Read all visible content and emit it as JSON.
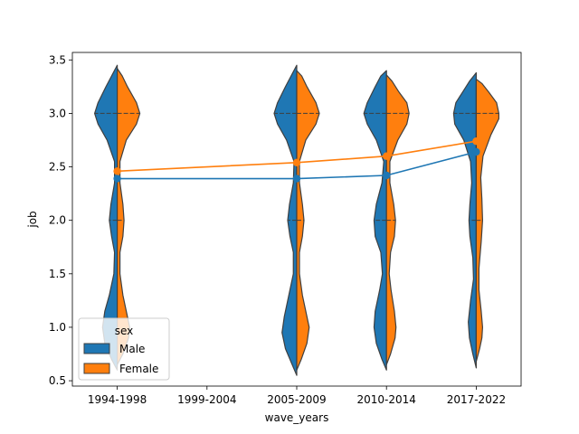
{
  "chart_data": {
    "type": "violin",
    "xlabel": "wave_years",
    "ylabel": "job",
    "categories": [
      "1994-1998",
      "1999-2004",
      "2005-2009",
      "2010-2014",
      "2017-2022"
    ],
    "yticks": [
      "0.5",
      "1.0",
      "1.5",
      "2.0",
      "2.5",
      "3.0",
      "3.5"
    ],
    "ylim": [
      0.45,
      3.57
    ],
    "legend": {
      "title": "sex",
      "placement": "lower-left",
      "entries": [
        "Male",
        "Female"
      ]
    },
    "colors": {
      "Male": "#1f77b4",
      "Female": "#ff7f0e",
      "edge": "#3f3f3f"
    },
    "series": [
      {
        "name": "Male",
        "means": [
          2.39,
          null,
          2.39,
          2.42,
          2.64
        ],
        "violins": [
          {
            "category": "1994-1998",
            "profile": [
              [
                0.6,
                0.0
              ],
              [
                0.7,
                0.25
              ],
              [
                0.85,
                0.55
              ],
              [
                1.0,
                0.65
              ],
              [
                1.15,
                0.55
              ],
              [
                1.3,
                0.35
              ],
              [
                1.5,
                0.15
              ],
              [
                1.7,
                0.12
              ],
              [
                1.85,
                0.25
              ],
              [
                2.0,
                0.35
              ],
              [
                2.15,
                0.28
              ],
              [
                2.35,
                0.12
              ],
              [
                2.55,
                0.12
              ],
              [
                2.75,
                0.45
              ],
              [
                2.9,
                0.85
              ],
              [
                3.0,
                1.0
              ],
              [
                3.1,
                0.85
              ],
              [
                3.25,
                0.5
              ],
              [
                3.35,
                0.25
              ],
              [
                3.45,
                0.0
              ]
            ],
            "quartiles": [
              2.0,
              3.0
            ]
          },
          {
            "category": "2005-2009",
            "profile": [
              [
                0.55,
                0.0
              ],
              [
                0.65,
                0.2
              ],
              [
                0.8,
                0.5
              ],
              [
                0.95,
                0.65
              ],
              [
                1.1,
                0.55
              ],
              [
                1.3,
                0.35
              ],
              [
                1.5,
                0.15
              ],
              [
                1.7,
                0.15
              ],
              [
                1.85,
                0.3
              ],
              [
                2.0,
                0.4
              ],
              [
                2.15,
                0.32
              ],
              [
                2.35,
                0.15
              ],
              [
                2.55,
                0.12
              ],
              [
                2.75,
                0.45
              ],
              [
                2.9,
                0.85
              ],
              [
                3.0,
                1.0
              ],
              [
                3.1,
                0.85
              ],
              [
                3.25,
                0.5
              ],
              [
                3.35,
                0.25
              ],
              [
                3.45,
                0.0
              ]
            ],
            "quartiles": [
              2.0,
              3.0
            ]
          },
          {
            "category": "2010-2014",
            "profile": [
              [
                0.6,
                0.0
              ],
              [
                0.7,
                0.2
              ],
              [
                0.85,
                0.45
              ],
              [
                1.0,
                0.55
              ],
              [
                1.15,
                0.5
              ],
              [
                1.35,
                0.3
              ],
              [
                1.5,
                0.18
              ],
              [
                1.7,
                0.25
              ],
              [
                1.85,
                0.5
              ],
              [
                2.0,
                0.55
              ],
              [
                2.15,
                0.45
              ],
              [
                2.35,
                0.2
              ],
              [
                2.55,
                0.12
              ],
              [
                2.75,
                0.45
              ],
              [
                2.9,
                0.85
              ],
              [
                3.0,
                1.0
              ],
              [
                3.1,
                0.85
              ],
              [
                3.25,
                0.5
              ],
              [
                3.35,
                0.25
              ],
              [
                3.4,
                0.0
              ]
            ],
            "quartiles": [
              2.0,
              3.0
            ]
          },
          {
            "category": "2017-2022",
            "profile": [
              [
                0.62,
                0.0
              ],
              [
                0.75,
                0.15
              ],
              [
                0.9,
                0.3
              ],
              [
                1.05,
                0.35
              ],
              [
                1.25,
                0.25
              ],
              [
                1.45,
                0.12
              ],
              [
                1.65,
                0.15
              ],
              [
                1.85,
                0.28
              ],
              [
                2.0,
                0.32
              ],
              [
                2.15,
                0.28
              ],
              [
                2.35,
                0.2
              ],
              [
                2.55,
                0.25
              ],
              [
                2.75,
                0.55
              ],
              [
                2.9,
                0.95
              ],
              [
                3.0,
                1.0
              ],
              [
                3.1,
                0.9
              ],
              [
                3.2,
                0.6
              ],
              [
                3.3,
                0.3
              ],
              [
                3.38,
                0.0
              ]
            ],
            "quartiles": [
              2.0,
              3.0
            ]
          }
        ]
      },
      {
        "name": "Female",
        "means": [
          2.46,
          null,
          2.54,
          2.6,
          2.74
        ],
        "violins": [
          {
            "category": "1994-1998",
            "profile": [
              [
                0.65,
                0.0
              ],
              [
                0.75,
                0.25
              ],
              [
                0.9,
                0.5
              ],
              [
                1.0,
                0.55
              ],
              [
                1.1,
                0.45
              ],
              [
                1.3,
                0.25
              ],
              [
                1.5,
                0.12
              ],
              [
                1.7,
                0.12
              ],
              [
                1.85,
                0.25
              ],
              [
                2.0,
                0.3
              ],
              [
                2.15,
                0.25
              ],
              [
                2.35,
                0.12
              ],
              [
                2.55,
                0.12
              ],
              [
                2.75,
                0.4
              ],
              [
                2.9,
                0.85
              ],
              [
                3.0,
                1.0
              ],
              [
                3.1,
                0.85
              ],
              [
                3.25,
                0.45
              ],
              [
                3.35,
                0.22
              ],
              [
                3.42,
                0.0
              ]
            ],
            "quartiles": [
              2.0,
              3.0
            ]
          },
          {
            "category": "2005-2009",
            "profile": [
              [
                0.6,
                0.0
              ],
              [
                0.7,
                0.2
              ],
              [
                0.85,
                0.45
              ],
              [
                1.0,
                0.55
              ],
              [
                1.1,
                0.45
              ],
              [
                1.3,
                0.25
              ],
              [
                1.5,
                0.12
              ],
              [
                1.7,
                0.12
              ],
              [
                1.85,
                0.25
              ],
              [
                2.0,
                0.32
              ],
              [
                2.15,
                0.25
              ],
              [
                2.35,
                0.12
              ],
              [
                2.55,
                0.12
              ],
              [
                2.75,
                0.4
              ],
              [
                2.9,
                0.85
              ],
              [
                3.0,
                1.0
              ],
              [
                3.1,
                0.85
              ],
              [
                3.25,
                0.45
              ],
              [
                3.35,
                0.22
              ],
              [
                3.4,
                0.0
              ]
            ],
            "quartiles": [
              2.0,
              3.0
            ]
          },
          {
            "category": "2010-2014",
            "profile": [
              [
                0.65,
                0.0
              ],
              [
                0.75,
                0.18
              ],
              [
                0.9,
                0.38
              ],
              [
                1.0,
                0.42
              ],
              [
                1.15,
                0.35
              ],
              [
                1.35,
                0.2
              ],
              [
                1.5,
                0.12
              ],
              [
                1.7,
                0.18
              ],
              [
                1.85,
                0.35
              ],
              [
                2.0,
                0.4
              ],
              [
                2.15,
                0.32
              ],
              [
                2.35,
                0.15
              ],
              [
                2.55,
                0.15
              ],
              [
                2.75,
                0.5
              ],
              [
                2.9,
                0.9
              ],
              [
                3.0,
                1.0
              ],
              [
                3.1,
                0.9
              ],
              [
                3.2,
                0.55
              ],
              [
                3.3,
                0.25
              ],
              [
                3.36,
                0.0
              ]
            ],
            "quartiles": [
              2.0,
              3.0
            ]
          },
          {
            "category": "2017-2022",
            "profile": [
              [
                0.68,
                0.0
              ],
              [
                0.8,
                0.15
              ],
              [
                0.9,
                0.25
              ],
              [
                1.0,
                0.28
              ],
              [
                1.15,
                0.22
              ],
              [
                1.35,
                0.12
              ],
              [
                1.55,
                0.12
              ],
              [
                1.8,
                0.22
              ],
              [
                2.0,
                0.28
              ],
              [
                2.2,
                0.25
              ],
              [
                2.4,
                0.2
              ],
              [
                2.6,
                0.3
              ],
              [
                2.8,
                0.65
              ],
              [
                2.95,
                1.0
              ],
              [
                3.0,
                1.0
              ],
              [
                3.1,
                0.9
              ],
              [
                3.2,
                0.55
              ],
              [
                3.28,
                0.25
              ],
              [
                3.32,
                0.0
              ]
            ],
            "quartiles": [
              2.0,
              3.0
            ]
          }
        ]
      }
    ]
  }
}
